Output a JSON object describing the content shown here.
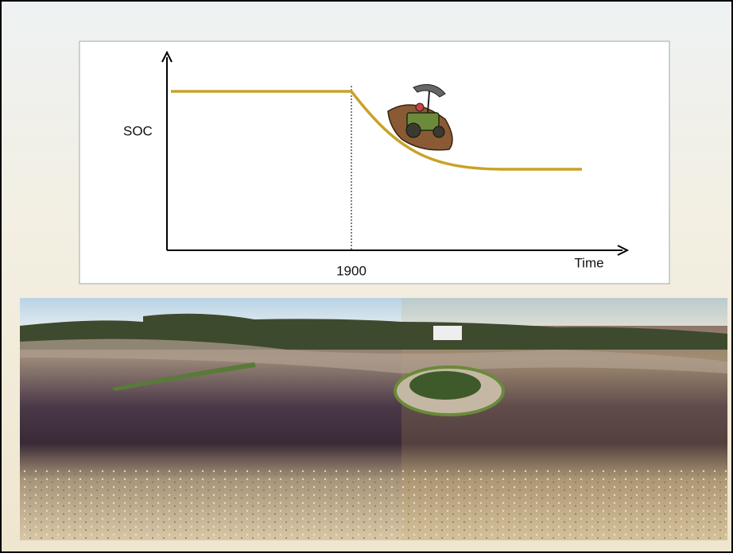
{
  "diagram": {
    "y_label": "SOC",
    "x_label": "Time",
    "marker_label": "1900"
  }
}
